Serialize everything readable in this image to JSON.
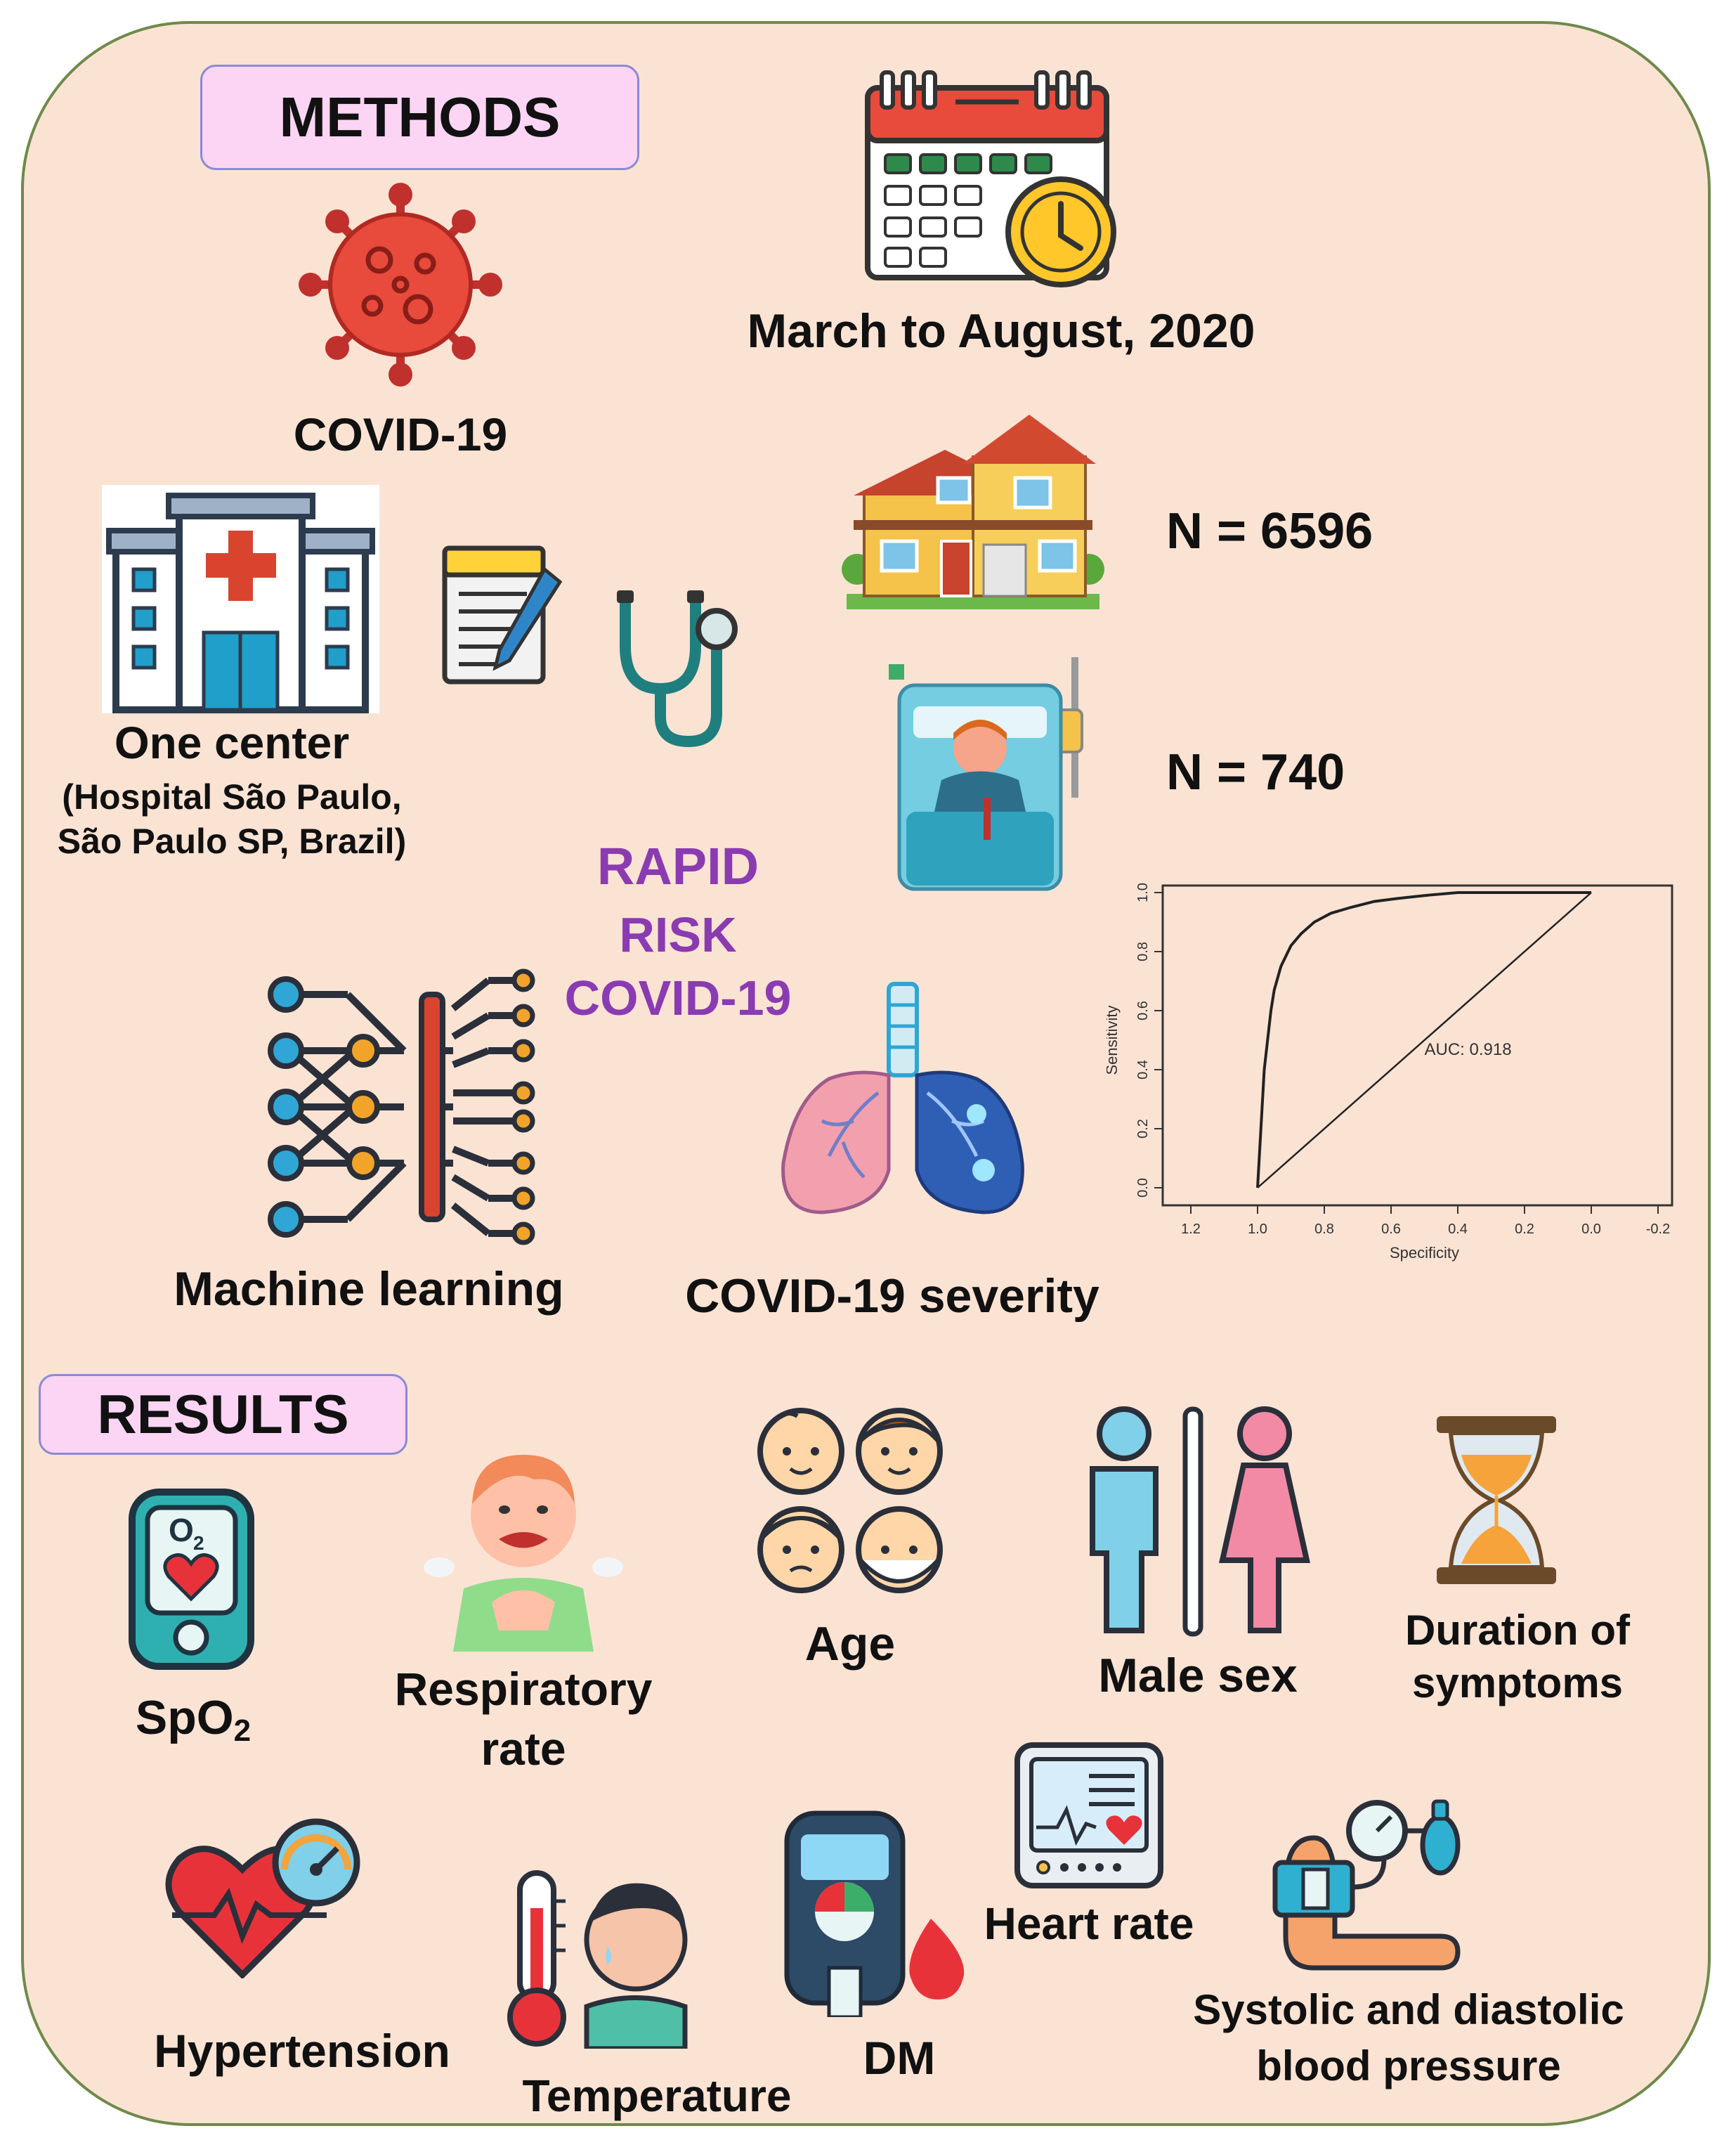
{
  "methods": {
    "badge": "METHODS",
    "covid_label": "COVID-19",
    "period": "March to August, 2020",
    "n_total": "N = 6596",
    "n_hosp": "N = 740",
    "center_title": "One center",
    "center_line1": "(Hospital  São Paulo,",
    "center_line2": "São Paulo  SP, Brazil)",
    "rapid_1": "RAPID",
    "rapid_2": "RISK",
    "rapid_3": "COVID-19",
    "ml_label": "Machine learning",
    "severity_label": "COVID-19 severity"
  },
  "chart_data": {
    "type": "line",
    "title": "",
    "xlabel": "Specificity",
    "ylabel": "Sensitivity",
    "xlim": [
      1.2,
      -0.2
    ],
    "ylim": [
      0.0,
      1.0
    ],
    "x_ticks": [
      "1.2",
      "1.0",
      "0.8",
      "0.6",
      "0.4",
      "0.2",
      "0.0",
      "-0.2"
    ],
    "y_ticks": [
      "0.0",
      "0.2",
      "0.4",
      "0.6",
      "0.8",
      "1.0"
    ],
    "annotation": "AUC: 0.918",
    "series": [
      {
        "x": [
          1.0,
          0.99,
          0.98,
          0.97,
          0.96,
          0.95,
          0.93,
          0.9,
          0.87,
          0.83,
          0.78,
          0.72,
          0.65,
          0.58,
          0.5,
          0.4,
          0.3,
          0.2,
          0.1,
          0.0
        ],
        "y": [
          0.0,
          0.2,
          0.4,
          0.5,
          0.6,
          0.67,
          0.75,
          0.82,
          0.86,
          0.9,
          0.93,
          0.95,
          0.97,
          0.98,
          0.99,
          1.0,
          1.0,
          1.0,
          1.0,
          1.0
        ]
      },
      {
        "x": [
          1.0,
          0.0
        ],
        "y": [
          0.0,
          1.0
        ]
      }
    ]
  },
  "results": {
    "badge": "RESULTS",
    "spo2_main": "SpO",
    "spo2_sub": "2",
    "resp_1": "Respiratory",
    "resp_2": "rate",
    "age": "Age",
    "male_sex": "Male sex",
    "dur_1": "Duration of",
    "dur_2": "symptoms",
    "hypertension": "Hypertension",
    "temperature": "Temperature",
    "dm": "DM",
    "heart_rate": "Heart rate",
    "bp_1": "Systolic and diastolic",
    "bp_2": "blood pressure",
    "o2_icon_text": "O",
    "o2_icon_sub": "2"
  }
}
